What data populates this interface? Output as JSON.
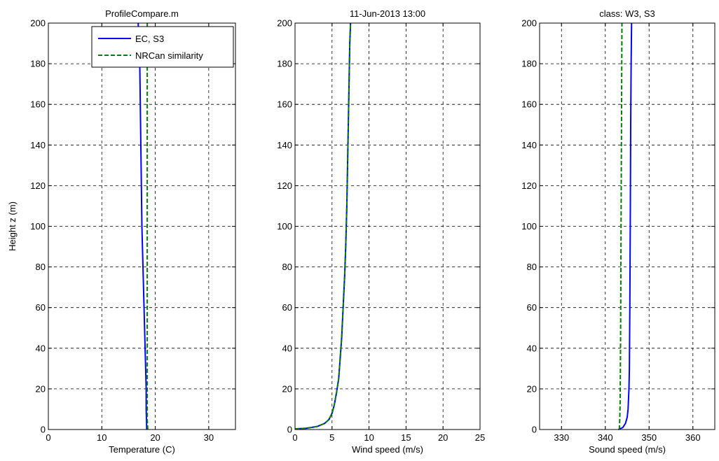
{
  "chart_data": [
    {
      "type": "line",
      "title": "ProfileCompare.m",
      "xlabel": "Temperature (C)",
      "ylabel": "Height z (m)",
      "xlim": [
        0,
        35
      ],
      "ylim": [
        0,
        200
      ],
      "xticks": [
        "0",
        "10",
        "20",
        "30"
      ],
      "yticks": [
        "0",
        "20",
        "40",
        "60",
        "80",
        "100",
        "120",
        "140",
        "160",
        "180",
        "200"
      ],
      "grid": true,
      "legend": {
        "position": "top-right",
        "entries": [
          "EC, S3",
          "NRCan similarity"
        ]
      },
      "series": [
        {
          "name": "EC, S3",
          "color": "#0000ff",
          "style": "solid",
          "x": [
            18.4,
            18.3,
            18.3,
            18.2,
            18.1,
            18.0,
            17.9,
            17.8,
            17.7,
            17.6,
            17.5,
            17.4,
            17.3,
            17.2,
            17.1,
            16.9,
            16.8
          ],
          "y": [
            0,
            10,
            20,
            30,
            40,
            50,
            60,
            70,
            80,
            90,
            100,
            120,
            140,
            160,
            180,
            195,
            200
          ]
        },
        {
          "name": "NRCan similarity",
          "color": "#008000",
          "style": "dashed",
          "x": [
            18.6,
            18.5,
            18.5,
            18.5,
            18.5,
            18.5,
            18.5
          ],
          "y": [
            0,
            5,
            20,
            50,
            100,
            150,
            200
          ]
        }
      ]
    },
    {
      "type": "line",
      "title": "11-Jun-2013 13:00",
      "xlabel": "Wind speed (m/s)",
      "ylabel": "",
      "xlim": [
        0,
        25
      ],
      "ylim": [
        0,
        200
      ],
      "xticks": [
        "0",
        "5",
        "10",
        "15",
        "20",
        "25"
      ],
      "yticks": [
        "0",
        "20",
        "40",
        "60",
        "80",
        "100",
        "120",
        "140",
        "160",
        "180",
        "200"
      ],
      "grid": true,
      "series": [
        {
          "color": "#0000ff",
          "style": "solid",
          "x": [
            0.0,
            1.5,
            3.0,
            4.0,
            4.6,
            5.0,
            5.3,
            5.6,
            5.9,
            6.1,
            6.3,
            6.5,
            6.7,
            6.85,
            7.0,
            7.1,
            7.2,
            7.3,
            7.4,
            7.5
          ],
          "y": [
            0.3,
            0.6,
            1.5,
            3,
            5,
            8,
            12,
            18,
            25,
            35,
            45,
            60,
            75,
            90,
            110,
            130,
            150,
            170,
            190,
            200
          ]
        },
        {
          "color": "#008000",
          "style": "dashed",
          "x": [
            0.0,
            1.5,
            3.0,
            4.0,
            4.6,
            5.0,
            5.3,
            5.6,
            5.9,
            6.1,
            6.3,
            6.5,
            6.7,
            6.85,
            7.0,
            7.1,
            7.2,
            7.3,
            7.4,
            7.5
          ],
          "y": [
            0.3,
            0.6,
            1.5,
            3,
            5,
            8,
            12,
            18,
            25,
            35,
            45,
            60,
            75,
            90,
            110,
            130,
            150,
            170,
            190,
            200
          ]
        }
      ]
    },
    {
      "type": "line",
      "title": "class: W3, S3",
      "xlabel": "Sound speed (m/s)",
      "ylabel": "",
      "xlim": [
        325,
        365
      ],
      "ylim": [
        0,
        200
      ],
      "xticks": [
        "330",
        "340",
        "350",
        "360"
      ],
      "yticks": [
        "0",
        "20",
        "40",
        "60",
        "80",
        "100",
        "120",
        "140",
        "160",
        "180",
        "200"
      ],
      "grid": true,
      "series": [
        {
          "color": "#0000ff",
          "style": "solid",
          "x": [
            343.0,
            344.0,
            344.6,
            345.0,
            345.2,
            345.4,
            345.5,
            345.6,
            345.7,
            345.8,
            345.9,
            346.0
          ],
          "y": [
            0,
            1,
            3,
            6,
            10,
            20,
            30,
            60,
            100,
            150,
            180,
            200
          ]
        },
        {
          "color": "#008000",
          "style": "dashed",
          "x": [
            343.2,
            343.3,
            343.4,
            343.5,
            343.6,
            343.7,
            343.8
          ],
          "y": [
            0,
            5,
            15,
            50,
            100,
            150,
            200
          ]
        }
      ]
    }
  ]
}
